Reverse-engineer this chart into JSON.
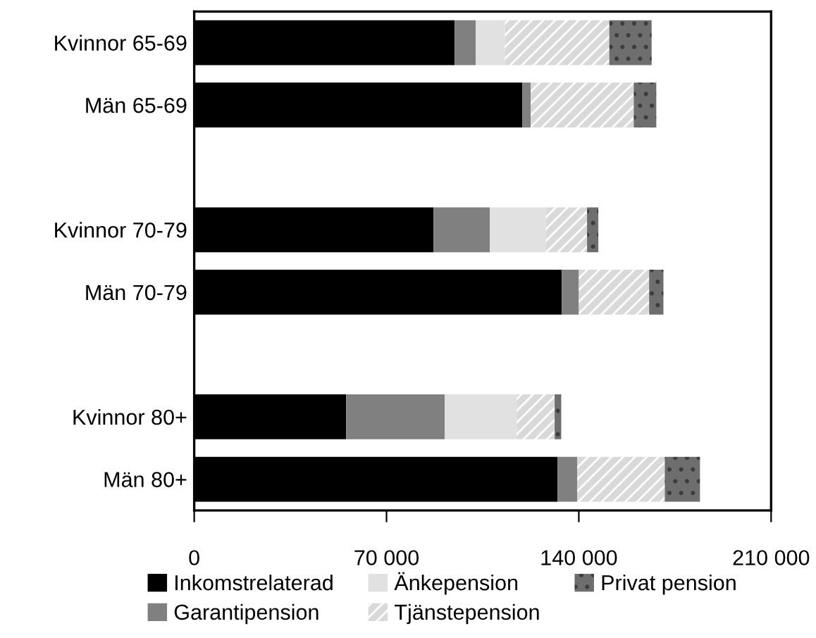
{
  "chart_data": {
    "type": "bar",
    "orientation": "horizontal",
    "stacked": true,
    "categories": [
      "Kvinnor 65-69",
      "Män 65-69",
      null,
      "Kvinnor 70-79",
      "Män 70-79",
      null,
      "Kvinnor 80+",
      "Män 80+"
    ],
    "series": [
      {
        "name": "Inkomstrelaterad",
        "color": "#000000",
        "values": [
          94800,
          119400,
          null,
          87100,
          133800,
          null,
          55300,
          132300
        ]
      },
      {
        "name": "Garantipension",
        "color": "#808080",
        "values": [
          7700,
          3100,
          null,
          20500,
          6200,
          null,
          35900,
          7100
        ]
      },
      {
        "name": "Änkepension",
        "color": "#e1e1e1",
        "values": [
          10600,
          0,
          null,
          20400,
          0,
          null,
          26200,
          0
        ]
      },
      {
        "name": "Tjänstepension",
        "color": "#d9d9d9",
        "values": [
          38000,
          37500,
          null,
          15000,
          25600,
          null,
          13800,
          31900
        ]
      },
      {
        "name": "Privat pension",
        "color": "#6e6e6e",
        "values": [
          15400,
          8200,
          null,
          4100,
          5200,
          null,
          2400,
          12800
        ]
      }
    ],
    "xlim": [
      0,
      210000
    ],
    "xticks": [
      {
        "value": 0,
        "label": "0"
      },
      {
        "value": 70000,
        "label": "70 000"
      },
      {
        "value": 140000,
        "label": "140 000"
      },
      {
        "value": 210000,
        "label": "210 000"
      }
    ],
    "grid": false,
    "legend": "bottom"
  }
}
